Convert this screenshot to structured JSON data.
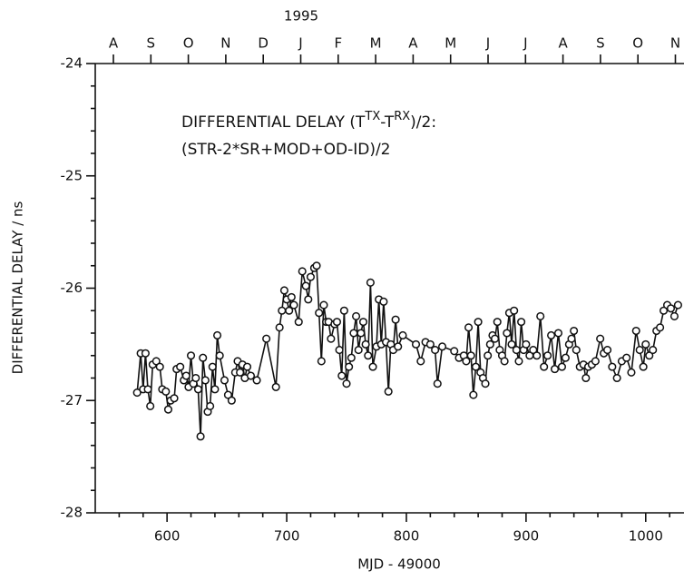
{
  "chart_data": {
    "type": "line",
    "top_title": "1995",
    "top_categories": [
      "A",
      "S",
      "O",
      "N",
      "D",
      "J",
      "F",
      "M",
      "A",
      "M",
      "J",
      "J",
      "A",
      "S",
      "O",
      "N"
    ],
    "annotation_line1": [
      "DIFFERENTIAL DELAY (T",
      "TX",
      "-T",
      "RX",
      ")/2:"
    ],
    "annotation_line2": "(STR-2*SR+MOD+OD-ID)/2",
    "ylabel": "DIFFERENTIAL DELAY / ns",
    "xlabel": "MJD - 49000",
    "xlim": [
      540,
      1032
    ],
    "ylim": [
      -28,
      -24
    ],
    "xticks": [
      600,
      700,
      800,
      900,
      1000
    ],
    "xticks_minor": [
      560,
      580,
      620,
      640,
      660,
      680,
      720,
      740,
      760,
      780,
      820,
      840,
      860,
      880,
      920,
      940,
      960,
      980,
      1020
    ],
    "yticks": [
      -28,
      -27,
      -26,
      -25,
      -24
    ],
    "yticks_minor": [
      -27.8,
      -27.6,
      -27.4,
      -27.2,
      -26.8,
      -26.6,
      -26.4,
      -26.2,
      -25.8,
      -25.6,
      -25.4,
      -25.2,
      -24.8,
      -24.6,
      -24.4,
      -24.2
    ],
    "color": "#111111",
    "x": [
      575,
      578,
      580,
      582,
      584,
      586,
      588,
      591,
      594,
      596,
      599,
      601,
      603,
      606,
      608,
      611,
      614,
      616,
      618,
      620,
      622,
      624,
      626,
      628,
      630,
      632,
      634,
      636,
      638,
      640,
      642,
      644,
      648,
      651,
      654,
      657,
      659,
      661,
      663,
      665,
      667,
      670,
      675,
      683,
      691,
      694,
      696,
      698,
      700,
      702,
      704,
      706,
      710,
      713,
      716,
      718,
      720,
      723,
      725,
      727,
      729,
      731,
      733,
      735,
      737,
      740,
      742,
      744,
      746,
      748,
      750,
      752,
      754,
      756,
      758,
      760,
      762,
      764,
      766,
      768,
      770,
      772,
      775,
      777,
      779,
      781,
      783,
      785,
      787,
      789,
      791,
      793,
      797,
      808,
      812,
      816,
      820,
      824,
      826,
      830,
      840,
      844,
      848,
      850,
      852,
      854,
      856,
      858,
      860,
      862,
      864,
      866,
      868,
      870,
      872,
      874,
      876,
      878,
      880,
      882,
      884,
      886,
      888,
      890,
      892,
      894,
      896,
      898,
      900,
      903,
      906,
      909,
      912,
      915,
      918,
      921,
      924,
      927,
      930,
      933,
      936,
      938,
      940,
      942,
      945,
      948,
      950,
      952,
      955,
      958,
      962,
      965,
      968,
      972,
      976,
      980,
      984,
      988,
      992,
      995,
      998,
      1000,
      1003,
      1006,
      1009,
      1012,
      1015,
      1018,
      1021,
      1024,
      1027
    ],
    "values": [
      -26.93,
      -26.58,
      -26.9,
      -26.58,
      -26.9,
      -27.05,
      -26.68,
      -26.65,
      -26.7,
      -26.9,
      -26.92,
      -27.08,
      -27.0,
      -26.98,
      -26.72,
      -26.7,
      -26.82,
      -26.78,
      -26.88,
      -26.6,
      -26.85,
      -26.8,
      -26.9,
      -27.32,
      -26.62,
      -26.82,
      -27.1,
      -27.05,
      -26.7,
      -26.9,
      -26.42,
      -26.6,
      -26.82,
      -26.95,
      -27.0,
      -26.75,
      -26.65,
      -26.75,
      -26.68,
      -26.8,
      -26.7,
      -26.78,
      -26.82,
      -26.45,
      -26.88,
      -26.35,
      -26.2,
      -26.02,
      -26.1,
      -26.2,
      -26.08,
      -26.15,
      -26.3,
      -25.85,
      -25.98,
      -26.1,
      -25.9,
      -25.82,
      -25.8,
      -26.22,
      -26.65,
      -26.15,
      -26.3,
      -26.3,
      -26.45,
      -26.32,
      -26.3,
      -26.55,
      -26.78,
      -26.2,
      -26.85,
      -26.7,
      -26.62,
      -26.4,
      -26.25,
      -26.55,
      -26.4,
      -26.3,
      -26.5,
      -26.6,
      -25.95,
      -26.7,
      -26.52,
      -26.1,
      -26.5,
      -26.12,
      -26.48,
      -26.92,
      -26.5,
      -26.55,
      -26.28,
      -26.52,
      -26.42,
      -26.5,
      -26.65,
      -26.48,
      -26.5,
      -26.55,
      -26.85,
      -26.52,
      -26.56,
      -26.62,
      -26.6,
      -26.65,
      -26.35,
      -26.6,
      -26.95,
      -26.7,
      -26.3,
      -26.75,
      -26.8,
      -26.85,
      -26.6,
      -26.5,
      -26.42,
      -26.45,
      -26.3,
      -26.55,
      -26.6,
      -26.65,
      -26.4,
      -26.22,
      -26.5,
      -26.2,
      -26.55,
      -26.65,
      -26.3,
      -26.55,
      -26.5,
      -26.6,
      -26.55,
      -26.6,
      -26.25,
      -26.7,
      -26.6,
      -26.42,
      -26.72,
      -26.4,
      -26.7,
      -26.62,
      -26.5,
      -26.45,
      -26.38,
      -26.55,
      -26.7,
      -26.68,
      -26.8,
      -26.7,
      -26.68,
      -26.65,
      -26.45,
      -26.58,
      -26.55,
      -26.7,
      -26.8,
      -26.65,
      -26.62,
      -26.75,
      -26.38,
      -26.55,
      -26.7,
      -26.5,
      -26.6,
      -26.55,
      -26.38,
      -26.35,
      -26.2,
      -26.15,
      -26.18,
      -26.25,
      -26.15
    ]
  }
}
